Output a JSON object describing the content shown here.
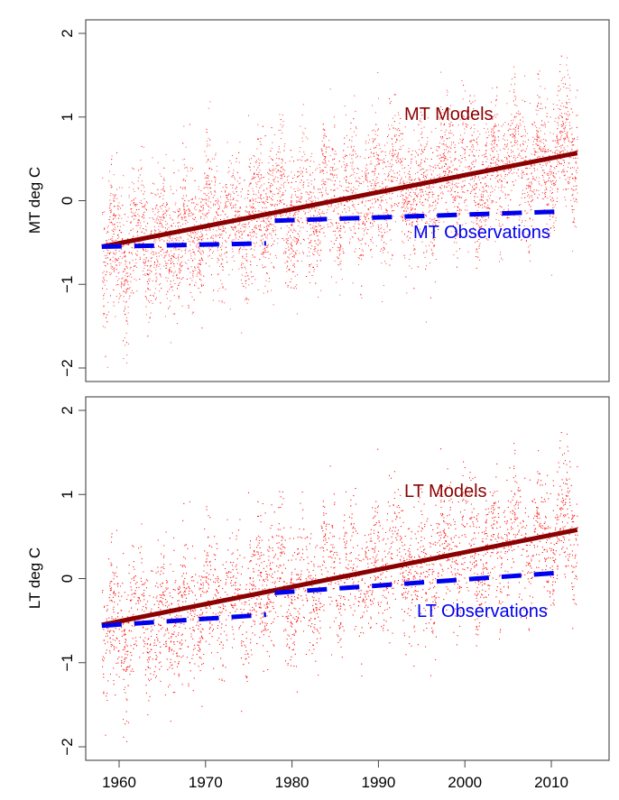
{
  "chart_data": [
    {
      "type": "scatter",
      "ylabel": "MT deg C",
      "xlim": [
        1956,
        2016
      ],
      "ylim": [
        -2.1,
        2.1
      ],
      "yticks": [
        "2",
        "1",
        "0",
        "−1",
        "−2"
      ],
      "ytick_values": [
        2,
        1,
        0,
        -1,
        -2
      ],
      "grid": false,
      "series": [
        {
          "name": "MT Models",
          "kind": "scatter+trend",
          "color": "#ff0000",
          "trend_color": "#8b0000",
          "trend": {
            "x": [
              1958,
              2013
            ],
            "y": [
              -0.55,
              0.57
            ]
          }
        },
        {
          "name": "MT Observations",
          "kind": "dashed-line",
          "color": "#0000ee",
          "segments": [
            {
              "x": [
                1958,
                1977
              ],
              "y": [
                -0.55,
                -0.51
              ]
            },
            {
              "x": [
                1978,
                2011
              ],
              "y": [
                -0.24,
                -0.13
              ]
            }
          ]
        }
      ]
    },
    {
      "type": "scatter",
      "ylabel": "LT deg C",
      "xlim": [
        1956,
        2016
      ],
      "ylim": [
        -2.1,
        2.1
      ],
      "xticks": [
        "1960",
        "1970",
        "1980",
        "1990",
        "2000",
        "2010"
      ],
      "xtick_values": [
        1960,
        1970,
        1980,
        1990,
        2000,
        2010
      ],
      "yticks": [
        "2",
        "1",
        "0",
        "−1",
        "−2"
      ],
      "ytick_values": [
        2,
        1,
        0,
        -1,
        -2
      ],
      "grid": false,
      "series": [
        {
          "name": "LT Models",
          "kind": "scatter+trend",
          "color": "#ff0000",
          "trend_color": "#8b0000",
          "trend": {
            "x": [
              1958,
              2013
            ],
            "y": [
              -0.55,
              0.58
            ]
          }
        },
        {
          "name": "LT Observations",
          "kind": "dashed-line",
          "color": "#0000ee",
          "segments": [
            {
              "x": [
                1958,
                1977
              ],
              "y": [
                -0.56,
                -0.43
              ]
            },
            {
              "x": [
                1978,
                2011
              ],
              "y": [
                -0.17,
                0.07
              ]
            }
          ]
        }
      ]
    }
  ]
}
